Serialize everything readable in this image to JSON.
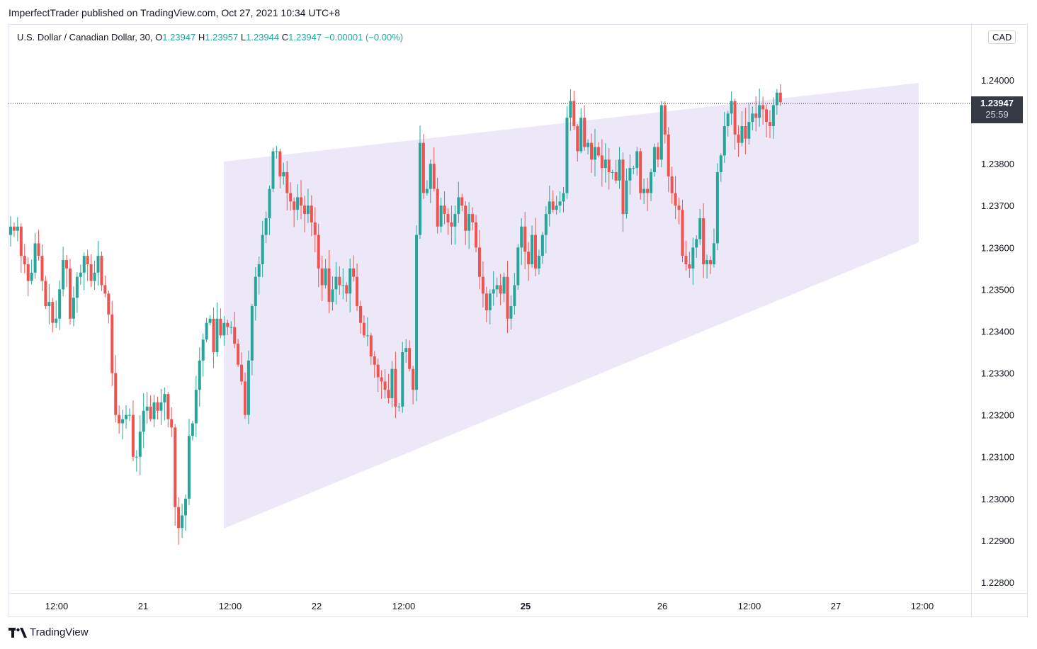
{
  "publication": {
    "author": "ImperfectTrader",
    "text": "ImperfectTrader published on TradingView.com, Oct 27, 2021 10:34 UTC+8"
  },
  "legend": {
    "symbol": "U.S. Dollar / Canadian Dollar, 30,",
    "o_label": "O",
    "o": "1.23947",
    "h_label": "H",
    "h": "1.23957",
    "l_label": "L",
    "l": "1.23944",
    "c_label": "C",
    "c": "1.23947",
    "change": "−0.00001 (−0.00%)"
  },
  "currency_badge": "CAD",
  "last_price": {
    "value": "1.23947",
    "countdown": "25:59"
  },
  "branding": {
    "name": "TradingView"
  },
  "colors": {
    "up": "#26a69a",
    "down": "#ef5350",
    "wedge": "#ece8f8",
    "dotted_line": "#131722"
  },
  "chart_data": {
    "type": "candlestick",
    "instrument": "U.S. Dollar / Canadian Dollar",
    "interval": "30",
    "ylim": [
      1.2275,
      1.2411
    ],
    "y_ticks": [
      "1.24000",
      "1.23800",
      "1.23700",
      "1.23600",
      "1.23500",
      "1.23400",
      "1.23300",
      "1.23200",
      "1.23100",
      "1.23000",
      "1.22900",
      "1.22800"
    ],
    "x_ticks": [
      "12:00",
      "21",
      "12:00",
      "22",
      "12:00",
      "25",
      "26",
      "12:00",
      "27",
      "12:00"
    ],
    "last_close": 1.23947,
    "close_series": [
      1.2365,
      1.2364,
      1.2365,
      1.2358,
      1.2356,
      1.2352,
      1.2354,
      1.2361,
      1.2358,
      1.2352,
      1.2346,
      1.2347,
      1.2342,
      1.2343,
      1.235,
      1.2357,
      1.2355,
      1.2343,
      1.2348,
      1.2353,
      1.2354,
      1.2358,
      1.2356,
      1.2352,
      1.2354,
      1.2358,
      1.2351,
      1.2349,
      1.2344,
      1.233,
      1.232,
      1.2318,
      1.2319,
      1.232,
      1.232,
      1.231,
      1.231,
      1.2316,
      1.2321,
      1.2322,
      1.2319,
      1.2323,
      1.2321,
      1.2323,
      1.2325,
      1.2319,
      1.2317,
      1.2298,
      1.2293,
      1.2296,
      1.23,
      1.2315,
      1.2318,
      1.2326,
      1.2333,
      1.2338,
      1.2342,
      1.2343,
      1.2335,
      1.2343,
      1.2339,
      1.2342,
      1.2341,
      1.2341,
      1.2337,
      1.2332,
      1.2328,
      1.232,
      1.2333,
      1.2346,
      1.2353,
      1.2356,
      1.2363,
      1.2367,
      1.2374,
      1.2383,
      1.2383,
      1.2377,
      1.2378,
      1.2373,
      1.2371,
      1.2369,
      1.2372,
      1.237,
      1.2368,
      1.237,
      1.2366,
      1.2363,
      1.2355,
      1.2351,
      1.2355,
      1.2347,
      1.235,
      1.2353,
      1.2351,
      1.2351,
      1.2349,
      1.2355,
      1.2353,
      1.2346,
      1.2342,
      1.2339,
      1.2339,
      1.2334,
      1.2332,
      1.2329,
      1.2328,
      1.2326,
      1.2324,
      1.2331,
      1.2322,
      1.2322,
      1.2335,
      1.2336,
      1.2331,
      1.2326,
      1.2363,
      1.2385,
      1.2373,
      1.2374,
      1.238,
      1.2374,
      1.2365,
      1.237,
      1.2368,
      1.2366,
      1.2365,
      1.2368,
      1.2372,
      1.237,
      1.2364,
      1.2368,
      1.2366,
      1.236,
      1.2353,
      1.2349,
      1.2345,
      1.2349,
      1.235,
      1.2351,
      1.2349,
      1.2353,
      1.2343,
      1.2346,
      1.2351,
      1.236,
      1.2365,
      1.2359,
      1.2356,
      1.2363,
      1.2355,
      1.2358,
      1.2363,
      1.2368,
      1.2371,
      1.2369,
      1.237,
      1.2371,
      1.2373,
      1.2391,
      1.2395,
      1.2389,
      1.2383,
      1.2391,
      1.2384,
      1.2385,
      1.2381,
      1.2384,
      1.2382,
      1.2379,
      1.2381,
      1.2378,
      1.2378,
      1.2376,
      1.2381,
      1.2368,
      1.2376,
      1.2379,
      1.2379,
      1.2383,
      1.2373,
      1.2374,
      1.2373,
      1.2378,
      1.2384,
      1.2381,
      1.2394,
      1.2387,
      1.2377,
      1.2373,
      1.237,
      1.2369,
      1.2358,
      1.2356,
      1.2355,
      1.236,
      1.2362,
      1.2367,
      1.2356,
      1.2357,
      1.2356,
      1.2361,
      1.2378,
      1.2382,
      1.2389,
      1.2392,
      1.2395,
      1.2387,
      1.2385,
      1.2389,
      1.2386,
      1.239,
      1.2392,
      1.2391,
      1.2394,
      1.2393,
      1.239,
      1.2389,
      1.2394,
      1.2397,
      1.23947
    ]
  }
}
